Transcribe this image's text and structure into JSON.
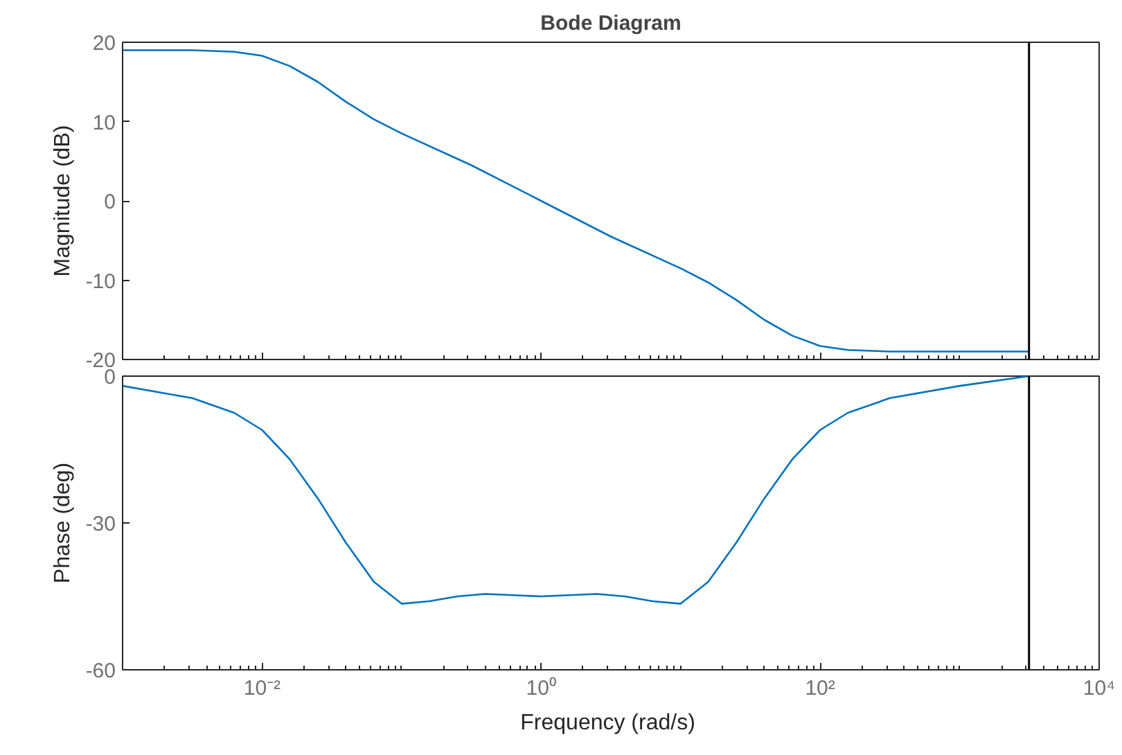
{
  "chart_data": [
    {
      "type": "line",
      "title": "Bode Diagram",
      "ylabel": "Magnitude (dB)",
      "log": "x",
      "grid": false,
      "tick_labels": "y",
      "xlim": [
        0.001,
        10000
      ],
      "xticks": [
        {
          "value": 0.01,
          "label": null
        },
        {
          "value": 1,
          "label": null
        },
        {
          "value": 100,
          "label": null
        },
        {
          "value": 10000,
          "label": null
        }
      ],
      "ylim": [
        -20,
        20
      ],
      "yticks": [
        -20,
        -10,
        0,
        10,
        20
      ],
      "ref_lines": [
        {
          "axis": "x",
          "value": 3142,
          "color": "#000000"
        }
      ],
      "series": [
        {
          "color": "#0072bd",
          "x": [
            0.001,
            0.00316,
            0.00631,
            0.01,
            0.0158,
            0.0251,
            0.0398,
            0.0631,
            0.1,
            0.316,
            1,
            3.16,
            10,
            15.8,
            25.1,
            39.8,
            63.1,
            100,
            158,
            316,
            1000,
            3142
          ],
          "values": [
            19,
            19,
            18.8,
            18.3,
            17,
            15,
            12.5,
            10.3,
            8.5,
            4.5,
            0,
            -4.5,
            -8.5,
            -10.3,
            -12.5,
            -15,
            -17,
            -18.3,
            -18.8,
            -19,
            -19,
            -19
          ]
        }
      ]
    },
    {
      "type": "line",
      "xlabel": "Frequency  (rad/s)",
      "ylabel": "Phase (deg)",
      "log": "x",
      "grid": false,
      "xlim": [
        0.001,
        10000
      ],
      "xticks": [
        {
          "value": 0.01,
          "label": "10⁻²"
        },
        {
          "value": 1,
          "label": "10⁰"
        },
        {
          "value": 100,
          "label": "10²"
        },
        {
          "value": 10000,
          "label": "10⁴"
        }
      ],
      "ylim": [
        -60,
        0
      ],
      "yticks": [
        -60,
        -30,
        0
      ],
      "ref_lines": [
        {
          "axis": "x",
          "value": 3142,
          "color": "#000000"
        }
      ],
      "series": [
        {
          "color": "#0072bd",
          "x": [
            0.001,
            0.00316,
            0.00631,
            0.01,
            0.0158,
            0.0251,
            0.0398,
            0.0631,
            0.1,
            0.158,
            0.251,
            0.398,
            1,
            2.51,
            3.98,
            6.31,
            10,
            15.8,
            25.1,
            39.8,
            63.1,
            100,
            158,
            316,
            1000,
            3142
          ],
          "values": [
            -2,
            -4.5,
            -7.5,
            -11,
            -17,
            -25,
            -34,
            -42,
            -46.5,
            -46,
            -45,
            -44.5,
            -45,
            -44.5,
            -45,
            -46,
            -46.5,
            -42,
            -34,
            -25,
            -17,
            -11,
            -7.5,
            -4.5,
            -2,
            0
          ]
        }
      ]
    }
  ]
}
